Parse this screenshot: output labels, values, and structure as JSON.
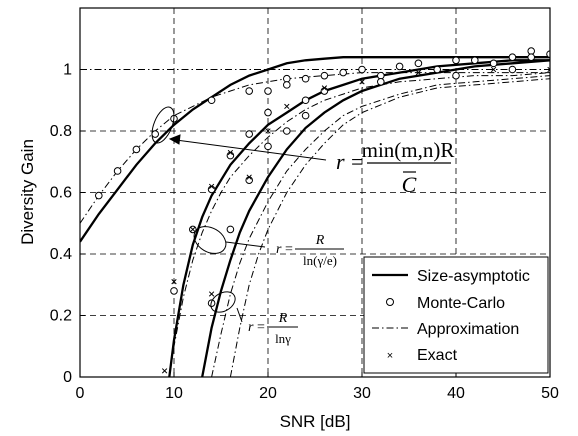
{
  "chart_data": {
    "type": "line",
    "xlabel": "SNR [dB]",
    "ylabel": "Diversity Gain",
    "xlim": [
      0,
      50
    ],
    "ylim": [
      0,
      1.2
    ],
    "x_ticks": [
      "0",
      "10",
      "20",
      "30",
      "40",
      "50"
    ],
    "y_ticks": [
      "0",
      "0.2",
      "0.4",
      "0.6",
      "0.8",
      "1"
    ],
    "grid": "dashed",
    "reference_line_y": 1,
    "legend_position": "bottom-right",
    "legend": [
      {
        "label": "Size-asymptotic",
        "style": "solid"
      },
      {
        "label": "Monte-Carlo",
        "style": "circle-marker"
      },
      {
        "label": "Approximation",
        "style": "dash-dot"
      },
      {
        "label": "Exact",
        "style": "x-marker"
      }
    ],
    "annotations": [
      {
        "r": "r",
        "equals": "=",
        "numerator": "min(m,n)R",
        "denominator": "C",
        "denominator_overbar": true
      },
      {
        "r": "r",
        "equals": "=",
        "numerator": "R",
        "denominator": "ln(γ/e)"
      },
      {
        "r": "r",
        "equals": "=",
        "numerator": "R",
        "denominator": "lnγ"
      }
    ],
    "series": [
      {
        "style": "solid",
        "x": [
          0,
          2,
          4,
          6,
          8,
          10,
          12,
          14,
          16,
          18,
          20,
          22,
          24,
          26,
          28,
          30,
          34,
          38,
          42,
          46,
          50
        ],
        "y": [
          0.44,
          0.53,
          0.61,
          0.69,
          0.76,
          0.82,
          0.87,
          0.91,
          0.95,
          0.98,
          1.0,
          1.02,
          1.03,
          1.035,
          1.04,
          1.04,
          1.04,
          1.04,
          1.04,
          1.04,
          1.04
        ]
      },
      {
        "style": "solid",
        "x": [
          9.5,
          10,
          11,
          12,
          13,
          14,
          15,
          16,
          18,
          20,
          22,
          24,
          26,
          28,
          30,
          34,
          38,
          42,
          46,
          50
        ],
        "y": [
          0.0,
          0.12,
          0.3,
          0.43,
          0.52,
          0.59,
          0.64,
          0.69,
          0.76,
          0.82,
          0.86,
          0.9,
          0.93,
          0.95,
          0.97,
          0.99,
          1.01,
          1.02,
          1.03,
          1.03
        ]
      },
      {
        "style": "solid",
        "x": [
          13,
          13.5,
          14,
          15,
          16,
          17,
          18,
          20,
          22,
          24,
          26,
          28,
          30,
          34,
          38,
          42,
          46,
          50
        ],
        "y": [
          0.0,
          0.08,
          0.16,
          0.28,
          0.38,
          0.47,
          0.54,
          0.65,
          0.74,
          0.81,
          0.86,
          0.9,
          0.93,
          0.97,
          0.99,
          1.01,
          1.02,
          1.03
        ]
      },
      {
        "style": "dash-dot",
        "x": [
          0,
          2,
          4,
          6,
          8,
          10,
          12,
          14,
          16,
          18,
          20,
          22,
          24,
          26,
          28,
          30,
          34,
          38,
          42,
          46,
          50
        ],
        "y": [
          0.5,
          0.59,
          0.67,
          0.74,
          0.8,
          0.85,
          0.88,
          0.91,
          0.93,
          0.95,
          0.96,
          0.97,
          0.975,
          0.98,
          0.985,
          0.99,
          0.99,
          0.99,
          0.99,
          0.99,
          0.99
        ]
      },
      {
        "style": "dash-dot",
        "x": [
          9.5,
          10,
          11,
          12,
          13,
          14,
          15,
          16,
          18,
          20,
          22,
          24,
          26,
          28,
          30,
          34,
          38,
          42,
          46,
          50
        ],
        "y": [
          0.0,
          0.1,
          0.26,
          0.38,
          0.47,
          0.54,
          0.6,
          0.65,
          0.72,
          0.78,
          0.83,
          0.87,
          0.9,
          0.92,
          0.94,
          0.96,
          0.97,
          0.98,
          0.98,
          0.99
        ]
      },
      {
        "style": "dash-dot",
        "x": [
          14,
          15,
          16,
          17,
          18,
          20,
          22,
          24,
          26,
          28,
          30,
          34,
          38,
          42,
          46,
          50
        ],
        "y": [
          0.0,
          0.14,
          0.27,
          0.37,
          0.45,
          0.57,
          0.67,
          0.74,
          0.8,
          0.85,
          0.88,
          0.92,
          0.95,
          0.96,
          0.97,
          0.98
        ]
      },
      {
        "style": "dash-dot",
        "x": [
          16,
          17,
          18,
          19,
          20,
          22,
          24,
          26,
          28,
          30,
          34,
          38,
          42,
          46,
          50
        ],
        "y": [
          0.0,
          0.16,
          0.3,
          0.4,
          0.48,
          0.6,
          0.69,
          0.76,
          0.82,
          0.86,
          0.91,
          0.94,
          0.95,
          0.96,
          0.97
        ]
      }
    ],
    "monte_carlo_points": [
      {
        "x": 2,
        "y": 0.59
      },
      {
        "x": 4,
        "y": 0.67
      },
      {
        "x": 6,
        "y": 0.74
      },
      {
        "x": 8,
        "y": 0.79
      },
      {
        "x": 10,
        "y": 0.84
      },
      {
        "x": 14,
        "y": 0.9
      },
      {
        "x": 18,
        "y": 0.93
      },
      {
        "x": 22,
        "y": 0.97
      },
      {
        "x": 26,
        "y": 0.98
      },
      {
        "x": 30,
        "y": 1.0
      },
      {
        "x": 36,
        "y": 1.02
      },
      {
        "x": 42,
        "y": 1.03
      },
      {
        "x": 48,
        "y": 1.06
      },
      {
        "x": 48,
        "y": 1.04
      },
      {
        "x": 50,
        "y": 1.05
      },
      {
        "x": 10,
        "y": 0.28
      },
      {
        "x": 12,
        "y": 0.48
      },
      {
        "x": 14,
        "y": 0.61
      },
      {
        "x": 16,
        "y": 0.72
      },
      {
        "x": 20,
        "y": 0.93
      },
      {
        "x": 22,
        "y": 0.95
      },
      {
        "x": 24,
        "y": 0.97
      },
      {
        "x": 28,
        "y": 0.99
      },
      {
        "x": 34,
        "y": 1.01
      },
      {
        "x": 40,
        "y": 1.03
      },
      {
        "x": 46,
        "y": 1.04
      },
      {
        "x": 14,
        "y": 0.24
      },
      {
        "x": 16,
        "y": 0.48
      },
      {
        "x": 18,
        "y": 0.64
      },
      {
        "x": 18,
        "y": 0.79
      },
      {
        "x": 20,
        "y": 0.86
      },
      {
        "x": 24,
        "y": 0.9
      },
      {
        "x": 26,
        "y": 0.93
      },
      {
        "x": 32,
        "y": 0.98
      },
      {
        "x": 38,
        "y": 1.0
      },
      {
        "x": 44,
        "y": 1.02
      },
      {
        "x": 20,
        "y": 0.75
      },
      {
        "x": 22,
        "y": 0.8
      },
      {
        "x": 24,
        "y": 0.85
      },
      {
        "x": 32,
        "y": 0.96
      },
      {
        "x": 40,
        "y": 0.98
      },
      {
        "x": 46,
        "y": 1.0
      }
    ],
    "exact_points": [
      {
        "x": 9,
        "y": 0.02
      },
      {
        "x": 10,
        "y": 0.31
      },
      {
        "x": 12,
        "y": 0.48
      },
      {
        "x": 14,
        "y": 0.27
      },
      {
        "x": 14,
        "y": 0.62
      },
      {
        "x": 16,
        "y": 0.73
      },
      {
        "x": 18,
        "y": 0.65
      },
      {
        "x": 20,
        "y": 0.8
      },
      {
        "x": 22,
        "y": 0.88
      },
      {
        "x": 26,
        "y": 0.94
      },
      {
        "x": 30,
        "y": 0.96
      },
      {
        "x": 36,
        "y": 0.99
      },
      {
        "x": 44,
        "y": 1.0
      },
      {
        "x": 50,
        "y": 1.0
      }
    ]
  }
}
